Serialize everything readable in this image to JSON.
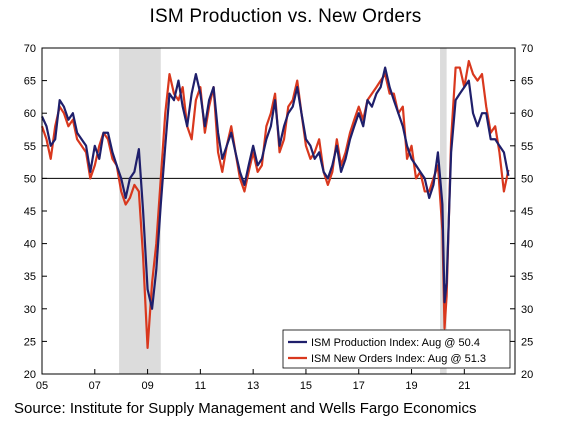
{
  "chart_data": {
    "type": "line",
    "title": "ISM Production vs. New Orders",
    "xlabel": "",
    "ylabel": "",
    "source": "Source: Institute for Supply Management and Wells Fargo Economics",
    "xlim": [
      2005,
      2022.92
    ],
    "ylim": [
      20,
      70
    ],
    "x_tick_values": [
      2005,
      2007,
      2009,
      2011,
      2013,
      2015,
      2017,
      2019,
      2021
    ],
    "x_tick_labels": [
      "05",
      "07",
      "09",
      "11",
      "13",
      "15",
      "17",
      "19",
      "21"
    ],
    "y_ticks": [
      20,
      25,
      30,
      35,
      40,
      45,
      50,
      55,
      60,
      65,
      70
    ],
    "reference_line": 50,
    "recessions": [
      [
        2007.92,
        2009.5
      ],
      [
        2020.08,
        2020.33
      ]
    ],
    "legend_position": "bottom-right",
    "colors": {
      "production": "#1f1f6b",
      "new_orders": "#d9381e",
      "recession": "#dcdcdc"
    },
    "series": [
      {
        "name": "ISM Production Index: Aug @ 50.4",
        "color": "#1f1f6b",
        "points": [
          [
            2005.0,
            59.5
          ],
          [
            2005.17,
            58
          ],
          [
            2005.33,
            55
          ],
          [
            2005.5,
            56
          ],
          [
            2005.67,
            62
          ],
          [
            2005.83,
            61
          ],
          [
            2006.0,
            59
          ],
          [
            2006.17,
            60
          ],
          [
            2006.33,
            57
          ],
          [
            2006.5,
            56
          ],
          [
            2006.67,
            55
          ],
          [
            2006.83,
            51
          ],
          [
            2007.0,
            55
          ],
          [
            2007.17,
            53
          ],
          [
            2007.33,
            57
          ],
          [
            2007.5,
            57
          ],
          [
            2007.67,
            54
          ],
          [
            2007.83,
            52
          ],
          [
            2008.0,
            50
          ],
          [
            2008.17,
            47
          ],
          [
            2008.33,
            50
          ],
          [
            2008.5,
            51
          ],
          [
            2008.67,
            54.5
          ],
          [
            2008.83,
            45
          ],
          [
            2009.0,
            33
          ],
          [
            2009.17,
            30
          ],
          [
            2009.33,
            36
          ],
          [
            2009.5,
            46
          ],
          [
            2009.67,
            55
          ],
          [
            2009.83,
            63
          ],
          [
            2010.0,
            62
          ],
          [
            2010.17,
            65
          ],
          [
            2010.33,
            61
          ],
          [
            2010.5,
            58
          ],
          [
            2010.67,
            63
          ],
          [
            2010.83,
            66
          ],
          [
            2011.0,
            63
          ],
          [
            2011.17,
            58
          ],
          [
            2011.33,
            62
          ],
          [
            2011.5,
            64
          ],
          [
            2011.67,
            57
          ],
          [
            2011.83,
            53
          ],
          [
            2012.0,
            55
          ],
          [
            2012.17,
            57
          ],
          [
            2012.33,
            54
          ],
          [
            2012.5,
            51
          ],
          [
            2012.67,
            49
          ],
          [
            2012.83,
            52
          ],
          [
            2013.0,
            55
          ],
          [
            2013.17,
            52
          ],
          [
            2013.33,
            53
          ],
          [
            2013.5,
            56
          ],
          [
            2013.67,
            58
          ],
          [
            2013.83,
            62
          ],
          [
            2014.0,
            55
          ],
          [
            2014.17,
            58
          ],
          [
            2014.33,
            60
          ],
          [
            2014.5,
            61
          ],
          [
            2014.67,
            64
          ],
          [
            2014.83,
            60
          ],
          [
            2015.0,
            56
          ],
          [
            2015.17,
            55
          ],
          [
            2015.33,
            53
          ],
          [
            2015.5,
            54
          ],
          [
            2015.67,
            51
          ],
          [
            2015.83,
            50
          ],
          [
            2016.0,
            52
          ],
          [
            2016.17,
            55
          ],
          [
            2016.33,
            51
          ],
          [
            2016.5,
            53
          ],
          [
            2016.67,
            56
          ],
          [
            2016.83,
            58
          ],
          [
            2017.0,
            60
          ],
          [
            2017.17,
            58
          ],
          [
            2017.33,
            62
          ],
          [
            2017.5,
            61
          ],
          [
            2017.67,
            63
          ],
          [
            2017.83,
            64
          ],
          [
            2018.0,
            67
          ],
          [
            2018.17,
            64
          ],
          [
            2018.33,
            62
          ],
          [
            2018.5,
            60
          ],
          [
            2018.67,
            58
          ],
          [
            2018.83,
            55
          ],
          [
            2019.0,
            53
          ],
          [
            2019.17,
            52
          ],
          [
            2019.33,
            51
          ],
          [
            2019.5,
            50
          ],
          [
            2019.67,
            47
          ],
          [
            2019.83,
            49
          ],
          [
            2020.0,
            54
          ],
          [
            2020.17,
            46
          ],
          [
            2020.25,
            31
          ],
          [
            2020.33,
            34
          ],
          [
            2020.5,
            54
          ],
          [
            2020.67,
            62
          ],
          [
            2020.83,
            63
          ],
          [
            2021.0,
            64
          ],
          [
            2021.17,
            65
          ],
          [
            2021.33,
            60
          ],
          [
            2021.5,
            58
          ],
          [
            2021.67,
            60
          ],
          [
            2021.83,
            60
          ],
          [
            2022.0,
            56
          ],
          [
            2022.17,
            56
          ],
          [
            2022.33,
            55
          ],
          [
            2022.5,
            54
          ],
          [
            2022.67,
            50.4
          ]
        ]
      },
      {
        "name": "ISM New Orders Index: Aug @ 51.3",
        "color": "#d9381e",
        "points": [
          [
            2005.0,
            58
          ],
          [
            2005.17,
            56
          ],
          [
            2005.33,
            53
          ],
          [
            2005.5,
            58
          ],
          [
            2005.67,
            61
          ],
          [
            2005.83,
            60
          ],
          [
            2006.0,
            58
          ],
          [
            2006.17,
            59
          ],
          [
            2006.33,
            56
          ],
          [
            2006.5,
            55
          ],
          [
            2006.67,
            54
          ],
          [
            2006.83,
            50
          ],
          [
            2007.0,
            52
          ],
          [
            2007.17,
            55
          ],
          [
            2007.33,
            57
          ],
          [
            2007.5,
            56
          ],
          [
            2007.67,
            53
          ],
          [
            2007.83,
            52
          ],
          [
            2008.0,
            48
          ],
          [
            2008.17,
            46
          ],
          [
            2008.33,
            47
          ],
          [
            2008.5,
            49
          ],
          [
            2008.67,
            48
          ],
          [
            2008.83,
            38
          ],
          [
            2009.0,
            24
          ],
          [
            2009.17,
            34
          ],
          [
            2009.33,
            40
          ],
          [
            2009.5,
            50
          ],
          [
            2009.67,
            60
          ],
          [
            2009.83,
            66
          ],
          [
            2010.0,
            63
          ],
          [
            2010.17,
            62
          ],
          [
            2010.33,
            64
          ],
          [
            2010.5,
            58
          ],
          [
            2010.67,
            56
          ],
          [
            2010.83,
            62
          ],
          [
            2011.0,
            64
          ],
          [
            2011.17,
            57
          ],
          [
            2011.33,
            61
          ],
          [
            2011.5,
            64
          ],
          [
            2011.67,
            54
          ],
          [
            2011.83,
            51
          ],
          [
            2012.0,
            55
          ],
          [
            2012.17,
            58
          ],
          [
            2012.33,
            54
          ],
          [
            2012.5,
            50
          ],
          [
            2012.67,
            48
          ],
          [
            2012.83,
            51
          ],
          [
            2013.0,
            54
          ],
          [
            2013.17,
            51
          ],
          [
            2013.33,
            52
          ],
          [
            2013.5,
            58
          ],
          [
            2013.67,
            60
          ],
          [
            2013.83,
            63
          ],
          [
            2014.0,
            54
          ],
          [
            2014.17,
            56
          ],
          [
            2014.33,
            61
          ],
          [
            2014.5,
            62
          ],
          [
            2014.67,
            65
          ],
          [
            2014.83,
            60
          ],
          [
            2015.0,
            55
          ],
          [
            2015.17,
            53
          ],
          [
            2015.33,
            54
          ],
          [
            2015.5,
            56
          ],
          [
            2015.67,
            51
          ],
          [
            2015.83,
            49
          ],
          [
            2016.0,
            51
          ],
          [
            2016.17,
            56
          ],
          [
            2016.33,
            52
          ],
          [
            2016.5,
            54
          ],
          [
            2016.67,
            57
          ],
          [
            2016.83,
            59
          ],
          [
            2017.0,
            61
          ],
          [
            2017.17,
            59
          ],
          [
            2017.33,
            62
          ],
          [
            2017.5,
            63
          ],
          [
            2017.67,
            64
          ],
          [
            2017.83,
            65
          ],
          [
            2018.0,
            66
          ],
          [
            2018.17,
            63
          ],
          [
            2018.33,
            63
          ],
          [
            2018.5,
            60
          ],
          [
            2018.67,
            61
          ],
          [
            2018.83,
            53
          ],
          [
            2019.0,
            55
          ],
          [
            2019.17,
            50
          ],
          [
            2019.33,
            51
          ],
          [
            2019.5,
            48
          ],
          [
            2019.67,
            48
          ],
          [
            2019.83,
            50
          ],
          [
            2020.0,
            52
          ],
          [
            2020.17,
            42
          ],
          [
            2020.25,
            27
          ],
          [
            2020.33,
            32
          ],
          [
            2020.5,
            56
          ],
          [
            2020.67,
            67
          ],
          [
            2020.83,
            67
          ],
          [
            2021.0,
            64
          ],
          [
            2021.17,
            68
          ],
          [
            2021.33,
            66
          ],
          [
            2021.5,
            65
          ],
          [
            2021.67,
            66
          ],
          [
            2021.83,
            61
          ],
          [
            2022.0,
            57
          ],
          [
            2022.17,
            58
          ],
          [
            2022.33,
            54
          ],
          [
            2022.5,
            48
          ],
          [
            2022.67,
            51.3
          ]
        ]
      }
    ]
  }
}
